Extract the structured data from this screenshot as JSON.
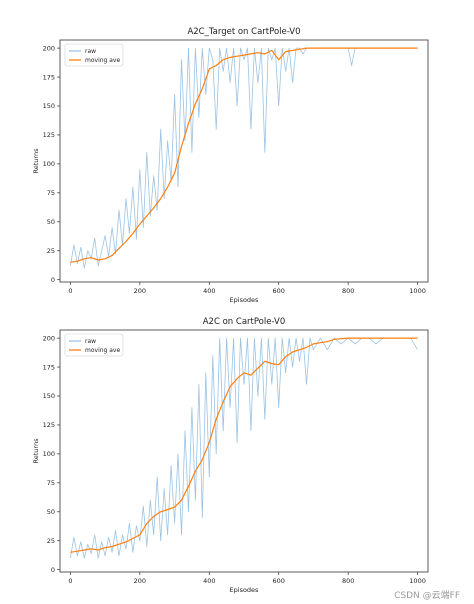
{
  "chart_data": [
    {
      "type": "line",
      "title": "A2C_Target on CartPole-V0",
      "xlabel": "Episodes",
      "ylabel": "Returns",
      "xlim": [
        -30,
        1030
      ],
      "ylim": [
        -2,
        207
      ],
      "xticks": [
        0,
        200,
        400,
        600,
        800,
        1000
      ],
      "yticks": [
        0,
        25,
        50,
        75,
        100,
        125,
        150,
        175,
        200
      ],
      "legend_position": "upper-left",
      "grid": false,
      "series": [
        {
          "name": "raw",
          "color": "#9cc3e4",
          "x": [
            0,
            10,
            20,
            30,
            40,
            50,
            60,
            70,
            80,
            90,
            100,
            110,
            120,
            130,
            140,
            150,
            160,
            170,
            180,
            190,
            200,
            210,
            220,
            230,
            240,
            250,
            260,
            270,
            280,
            290,
            300,
            310,
            320,
            330,
            340,
            350,
            360,
            370,
            380,
            390,
            400,
            410,
            420,
            430,
            440,
            450,
            460,
            470,
            480,
            490,
            500,
            510,
            520,
            530,
            540,
            550,
            560,
            570,
            580,
            590,
            600,
            610,
            620,
            630,
            640,
            650,
            660,
            670,
            680,
            690,
            700,
            720,
            740,
            760,
            780,
            800,
            810,
            820,
            830,
            840,
            860,
            880,
            900,
            920,
            940,
            960,
            980,
            1000
          ],
          "y": [
            12,
            30,
            14,
            28,
            10,
            25,
            18,
            36,
            12,
            25,
            38,
            20,
            45,
            22,
            60,
            30,
            70,
            40,
            80,
            35,
            95,
            45,
            110,
            55,
            90,
            60,
            130,
            70,
            120,
            85,
            160,
            80,
            190,
            120,
            200,
            110,
            200,
            140,
            200,
            160,
            200,
            190,
            130,
            200,
            180,
            200,
            170,
            200,
            150,
            200,
            190,
            200,
            130,
            200,
            170,
            200,
            110,
            200,
            190,
            200,
            150,
            200,
            180,
            200,
            170,
            200,
            200,
            195,
            200,
            200,
            200,
            200,
            200,
            200,
            200,
            200,
            185,
            200,
            200,
            200,
            200,
            200,
            200,
            200,
            200,
            200,
            200,
            200
          ]
        },
        {
          "name": "moving ave",
          "color": "#ff7f0e",
          "x": [
            0,
            20,
            40,
            60,
            80,
            100,
            120,
            140,
            160,
            180,
            200,
            220,
            240,
            260,
            280,
            300,
            320,
            340,
            360,
            380,
            400,
            420,
            440,
            460,
            480,
            500,
            520,
            540,
            560,
            580,
            600,
            620,
            640,
            660,
            680,
            700,
            760,
            800,
            900,
            1000
          ],
          "y": [
            15,
            16,
            18,
            19,
            17,
            18,
            21,
            27,
            33,
            40,
            48,
            55,
            62,
            70,
            80,
            92,
            115,
            135,
            152,
            165,
            182,
            185,
            190,
            192,
            193,
            194,
            195,
            196,
            195,
            198,
            190,
            197,
            198,
            199,
            200,
            200,
            200,
            200,
            200,
            200
          ]
        }
      ]
    },
    {
      "type": "line",
      "title": "A2C on CartPole-V0",
      "xlabel": "Episodes",
      "ylabel": "Returns",
      "xlim": [
        -30,
        1030
      ],
      "ylim": [
        -2,
        207
      ],
      "xticks": [
        0,
        200,
        400,
        600,
        800,
        1000
      ],
      "yticks": [
        0,
        25,
        50,
        75,
        100,
        125,
        150,
        175,
        200
      ],
      "legend_position": "upper-left",
      "grid": false,
      "series": [
        {
          "name": "raw",
          "color": "#9cc3e4",
          "x": [
            0,
            10,
            20,
            30,
            40,
            50,
            60,
            70,
            80,
            90,
            100,
            110,
            120,
            130,
            140,
            150,
            160,
            170,
            180,
            190,
            200,
            210,
            220,
            230,
            240,
            250,
            260,
            270,
            280,
            290,
            300,
            310,
            320,
            330,
            340,
            350,
            360,
            370,
            380,
            390,
            400,
            410,
            420,
            430,
            440,
            450,
            460,
            470,
            480,
            490,
            500,
            510,
            520,
            530,
            540,
            550,
            560,
            570,
            580,
            590,
            600,
            610,
            620,
            630,
            640,
            650,
            660,
            670,
            680,
            690,
            700,
            720,
            740,
            760,
            780,
            800,
            820,
            840,
            860,
            880,
            900,
            920,
            940,
            960,
            980,
            1000
          ],
          "y": [
            10,
            28,
            12,
            24,
            10,
            22,
            14,
            30,
            10,
            24,
            12,
            28,
            15,
            34,
            12,
            30,
            18,
            40,
            15,
            38,
            25,
            55,
            20,
            60,
            30,
            80,
            25,
            70,
            30,
            90,
            40,
            100,
            30,
            120,
            50,
            140,
            60,
            160,
            45,
            170,
            80,
            185,
            100,
            200,
            120,
            200,
            140,
            200,
            110,
            200,
            160,
            200,
            120,
            200,
            150,
            200,
            130,
            200,
            160,
            200,
            140,
            200,
            170,
            200,
            175,
            200,
            180,
            200,
            160,
            200,
            190,
            200,
            190,
            200,
            195,
            200,
            195,
            200,
            200,
            195,
            200,
            200,
            200,
            200,
            200,
            190
          ]
        },
        {
          "name": "moving ave",
          "color": "#ff7f0e",
          "x": [
            0,
            20,
            40,
            60,
            80,
            100,
            120,
            140,
            160,
            180,
            200,
            220,
            240,
            260,
            280,
            300,
            320,
            340,
            360,
            380,
            400,
            420,
            440,
            460,
            480,
            500,
            520,
            540,
            560,
            580,
            600,
            620,
            640,
            660,
            680,
            700,
            720,
            740,
            760,
            800,
            900,
            1000
          ],
          "y": [
            15,
            16,
            17,
            18,
            17,
            19,
            20,
            22,
            24,
            27,
            30,
            40,
            46,
            50,
            52,
            54,
            60,
            72,
            85,
            95,
            110,
            130,
            145,
            158,
            165,
            170,
            168,
            174,
            180,
            178,
            177,
            184,
            188,
            190,
            192,
            195,
            196,
            197,
            199,
            200,
            200,
            200
          ]
        }
      ]
    }
  ],
  "watermark": "CSDN @云端FF"
}
